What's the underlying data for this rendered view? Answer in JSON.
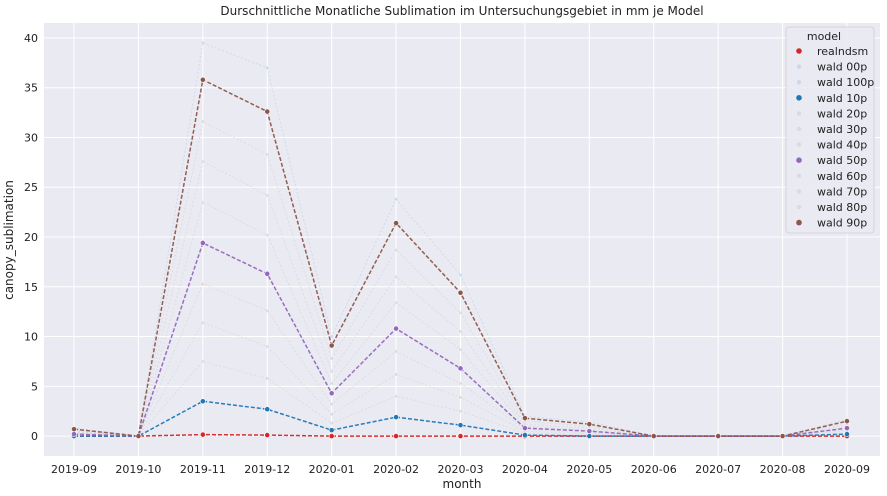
{
  "chart_data": {
    "type": "line",
    "title": "Durschnittliche Monatliche Sublimation im Untersuchungsgebiet in mm je Model",
    "xlabel": "month",
    "ylabel": "canopy_sublimation",
    "categories": [
      "2019-09",
      "2019-10",
      "2019-11",
      "2019-12",
      "2020-01",
      "2020-02",
      "2020-03",
      "2020-04",
      "2020-05",
      "2020-06",
      "2020-07",
      "2020-08",
      "2020-09"
    ],
    "ylim": [
      -2,
      41.5
    ],
    "yticks": [
      0,
      5,
      10,
      15,
      20,
      25,
      30,
      35,
      40
    ],
    "grid": true,
    "legend": {
      "title": "model",
      "placement": "top-right"
    },
    "series": [
      {
        "name": "realndsm",
        "color": "#d62728",
        "faint": false,
        "values": [
          0.0,
          0.0,
          0.15,
          0.1,
          0.0,
          0.0,
          0.0,
          0.0,
          0.0,
          0.0,
          0.0,
          0.0,
          0.0
        ]
      },
      {
        "name": "wald 00p",
        "color": "#aec7e8",
        "faint": true,
        "values": [
          0.0,
          0.0,
          0.0,
          0.0,
          0.0,
          0.0,
          0.0,
          0.0,
          0.0,
          0.0,
          0.0,
          0.0,
          0.0
        ]
      },
      {
        "name": "wald 100p",
        "color": "#aec7e8",
        "faint": true,
        "values": [
          0.8,
          0.0,
          39.5,
          37.0,
          10.0,
          23.8,
          16.2,
          2.0,
          1.4,
          0.0,
          0.0,
          0.0,
          1.7
        ]
      },
      {
        "name": "wald 10p",
        "color": "#1f77b4",
        "faint": false,
        "values": [
          0.0,
          0.0,
          3.5,
          2.7,
          0.6,
          1.9,
          1.1,
          0.1,
          0.0,
          0.0,
          0.0,
          0.0,
          0.2
        ]
      },
      {
        "name": "wald 20p",
        "color": "#cccccc",
        "faint": true,
        "values": [
          0.1,
          0.0,
          7.5,
          5.8,
          1.3,
          4.0,
          2.5,
          0.3,
          0.1,
          0.0,
          0.0,
          0.0,
          0.3
        ]
      },
      {
        "name": "wald 30p",
        "color": "#cccccc",
        "faint": true,
        "values": [
          0.2,
          0.0,
          11.4,
          9.0,
          2.2,
          6.2,
          3.9,
          0.5,
          0.2,
          0.0,
          0.0,
          0.0,
          0.5
        ]
      },
      {
        "name": "wald 40p",
        "color": "#cccccc",
        "faint": true,
        "values": [
          0.3,
          0.0,
          15.3,
          12.6,
          3.2,
          8.5,
          5.3,
          0.7,
          0.3,
          0.0,
          0.0,
          0.0,
          0.6
        ]
      },
      {
        "name": "wald 50p",
        "color": "#9467bd",
        "faint": false,
        "values": [
          0.2,
          0.0,
          19.4,
          16.3,
          4.3,
          10.8,
          6.8,
          0.8,
          0.5,
          0.0,
          0.0,
          0.0,
          0.8
        ]
      },
      {
        "name": "wald 60p",
        "color": "#cccccc",
        "faint": true,
        "values": [
          0.4,
          0.0,
          23.5,
          20.2,
          5.3,
          13.4,
          8.7,
          1.0,
          0.6,
          0.0,
          0.0,
          0.0,
          0.9
        ]
      },
      {
        "name": "wald 70p",
        "color": "#cccccc",
        "faint": true,
        "values": [
          0.5,
          0.0,
          27.6,
          24.2,
          6.5,
          16.0,
          10.5,
          1.2,
          0.8,
          0.0,
          0.0,
          0.0,
          1.1
        ]
      },
      {
        "name": "wald 80p",
        "color": "#cccccc",
        "faint": true,
        "values": [
          0.6,
          0.0,
          31.6,
          28.3,
          7.8,
          18.7,
          12.4,
          1.5,
          1.0,
          0.0,
          0.0,
          0.0,
          1.3
        ]
      },
      {
        "name": "wald 90p",
        "color": "#8c564b",
        "faint": false,
        "values": [
          0.7,
          0.0,
          35.8,
          32.6,
          9.1,
          21.4,
          14.4,
          1.8,
          1.2,
          0.0,
          0.0,
          0.0,
          1.5
        ]
      }
    ]
  }
}
